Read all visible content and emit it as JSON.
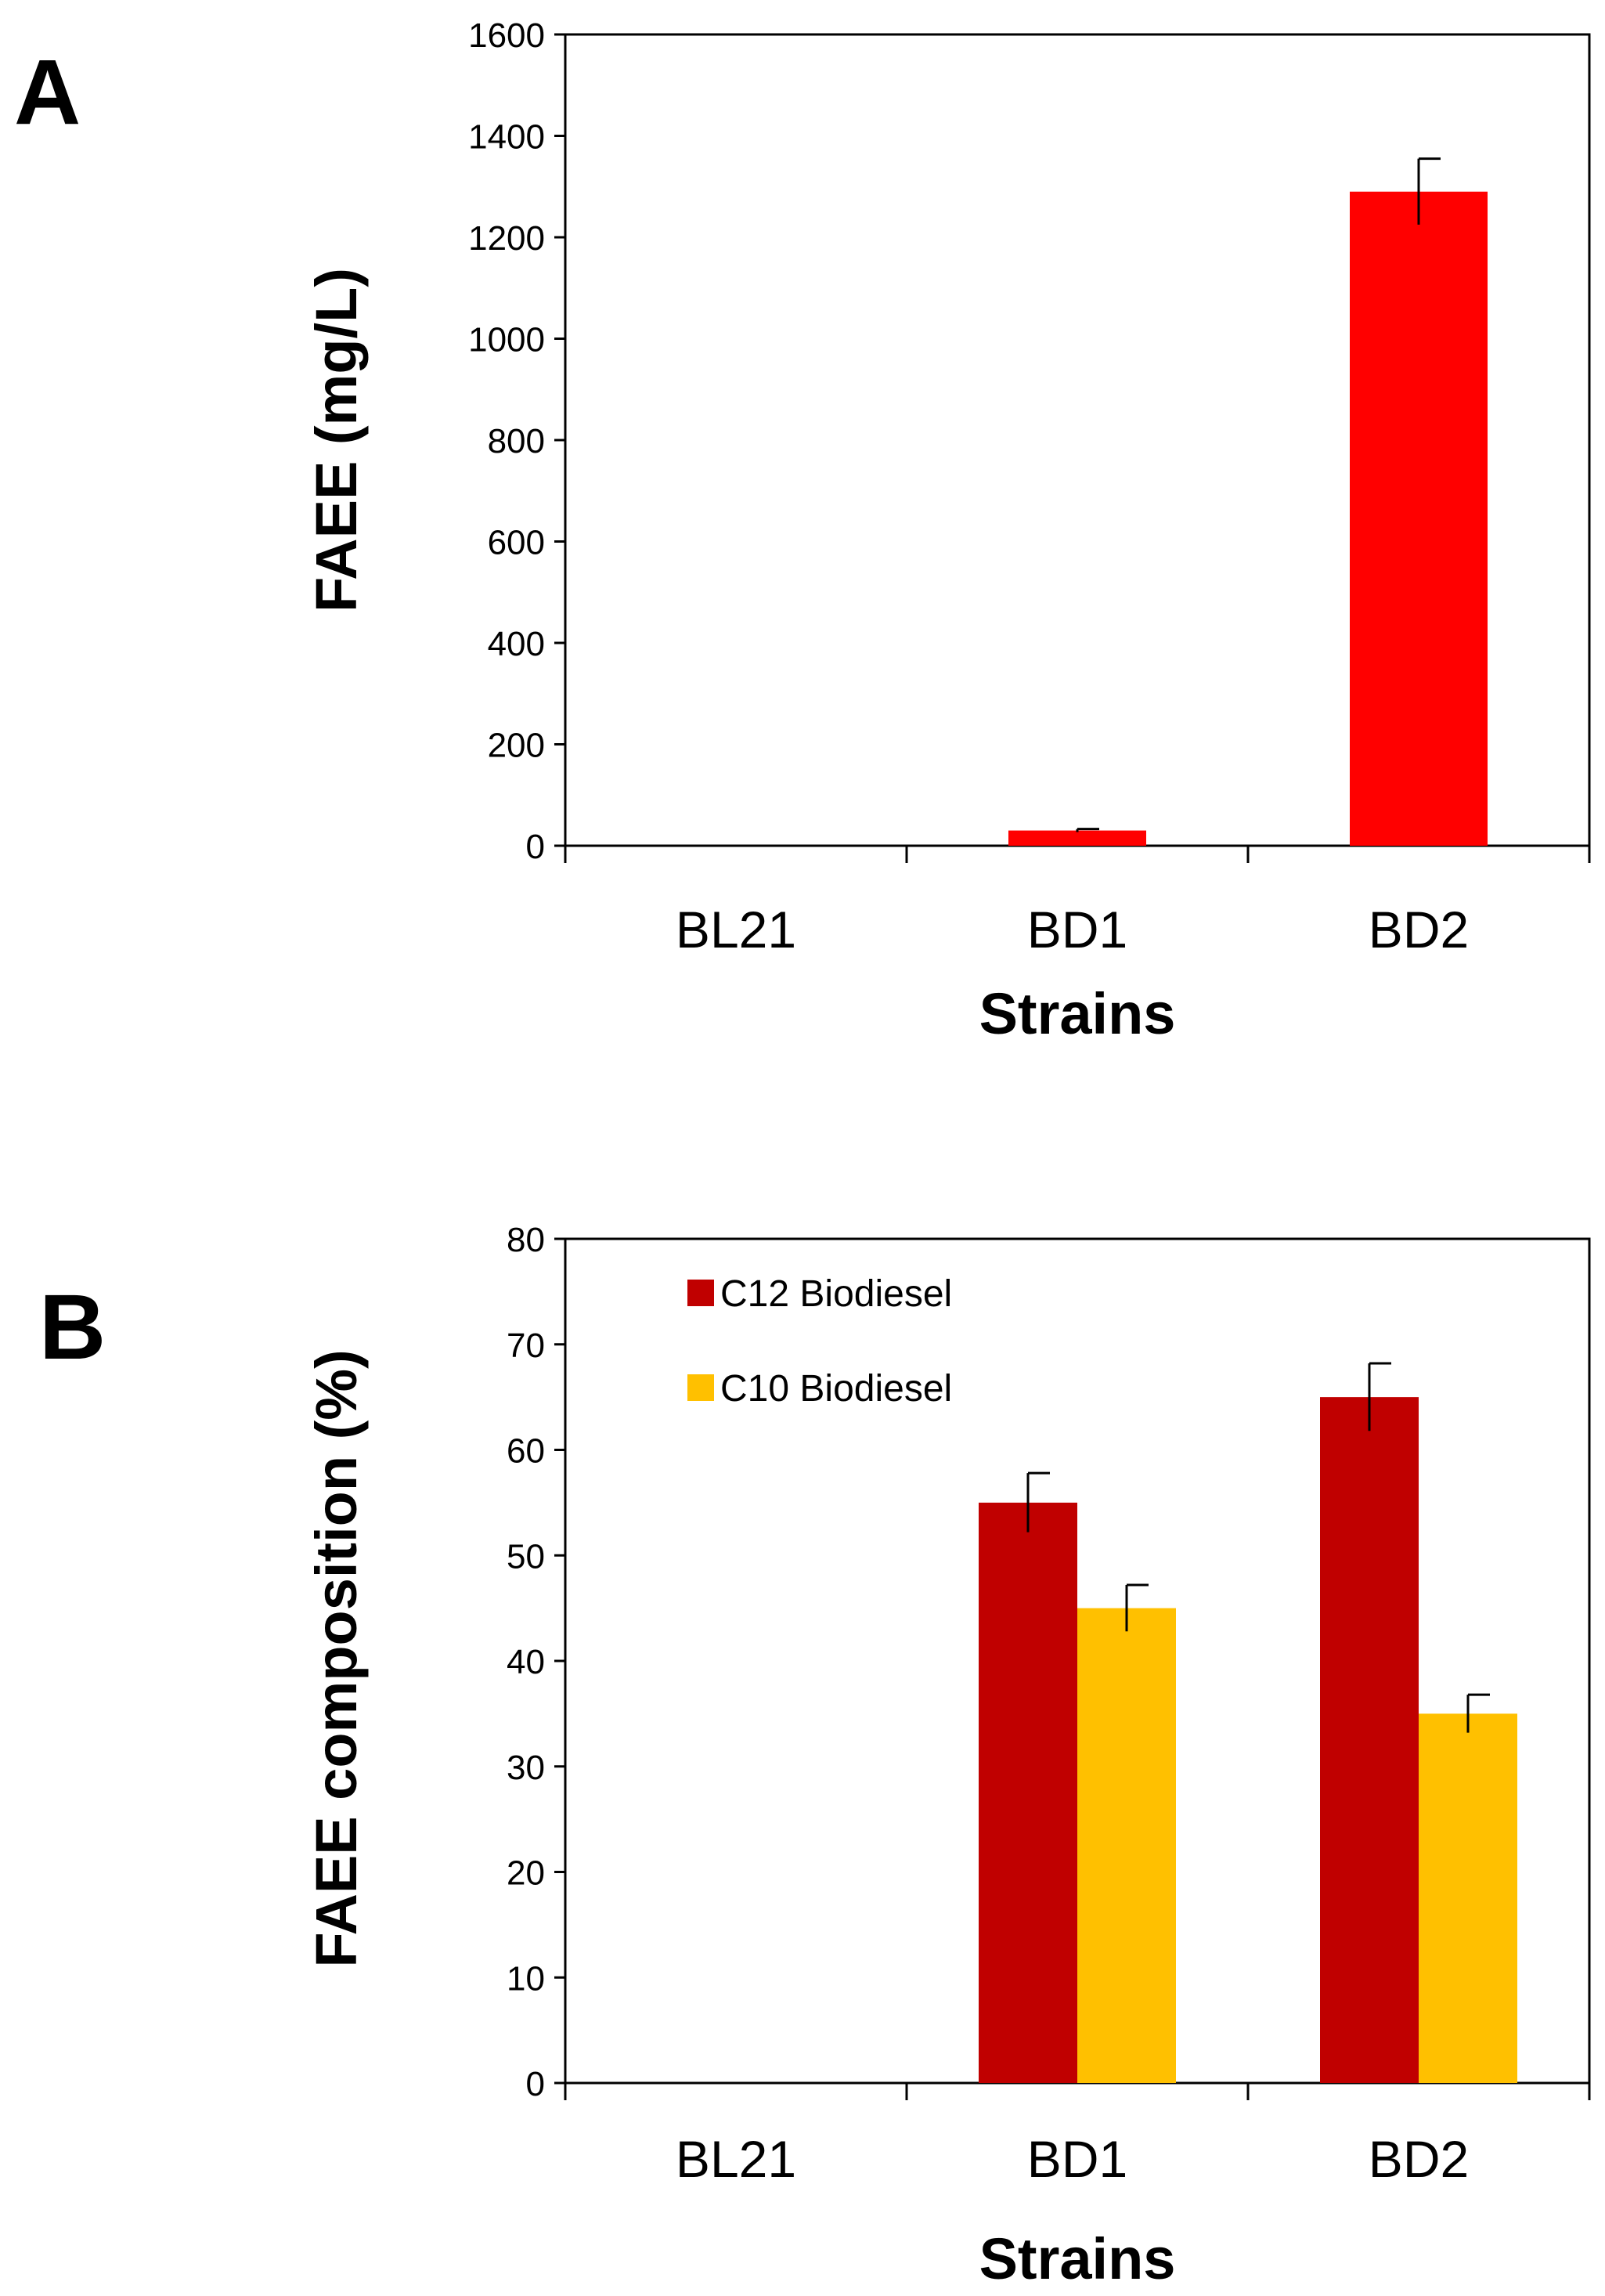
{
  "chart_data": [
    {
      "type": "bar",
      "panel_label": "A",
      "categories": [
        "BL21",
        "BD1",
        "BD2"
      ],
      "series": [
        {
          "values": [
            0,
            30,
            1290
          ],
          "error": [
            0,
            3,
            65
          ],
          "color": "#ff0000"
        }
      ],
      "xlabel": "Strains",
      "ylabel": "FAEE (mg/L)",
      "ylim": [
        0,
        1600
      ],
      "yticks": [
        0,
        200,
        400,
        600,
        800,
        1000,
        1200,
        1400,
        1600
      ],
      "grid": false,
      "legend": "none"
    },
    {
      "type": "bar",
      "panel_label": "B",
      "categories": [
        "BL21",
        "BD1",
        "BD2"
      ],
      "series": [
        {
          "name": "C12 Biodiesel",
          "values": [
            0,
            55,
            65
          ],
          "error": [
            0,
            2.8,
            3.2
          ],
          "color": "#c00000"
        },
        {
          "name": "C10 Biodiesel",
          "values": [
            0,
            45,
            35
          ],
          "error": [
            0,
            2.2,
            1.8
          ],
          "color": "#ffc000"
        }
      ],
      "xlabel": "Strains",
      "ylabel": "FAEE composition (%)",
      "ylim": [
        0,
        80
      ],
      "yticks": [
        0,
        10,
        20,
        30,
        40,
        50,
        60,
        70,
        80
      ],
      "grid": false,
      "legend": "top-left"
    }
  ]
}
